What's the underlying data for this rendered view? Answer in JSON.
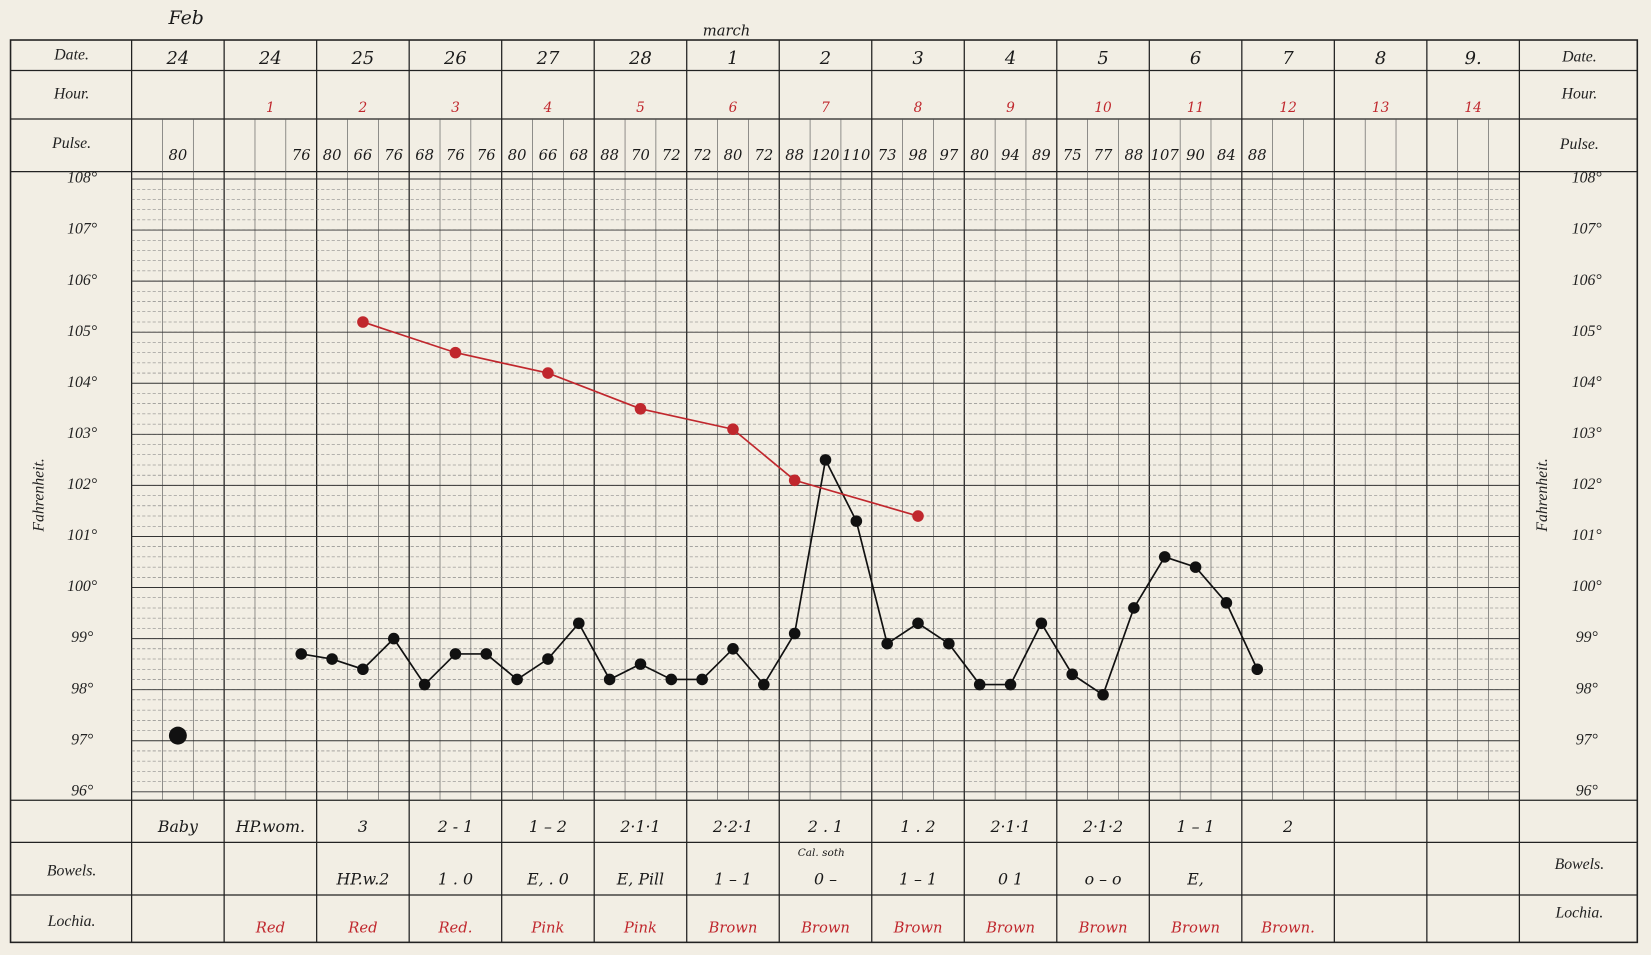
{
  "header": {
    "date_label": "Date.",
    "hour_label": "Hour.",
    "pulse_label": "Pulse.",
    "fahrenheit_label": "Fahrenheit.",
    "bowels_label": "Bowels.",
    "lochia_label": "Lochia.",
    "months": [
      "Feb",
      "march"
    ]
  },
  "dates": [
    "24",
    "24",
    "25",
    "26",
    "27",
    "28",
    "1",
    "2",
    "3",
    "4",
    "5",
    "6",
    "7",
    "8",
    "9."
  ],
  "hours": [
    null,
    1,
    2,
    3,
    4,
    5,
    6,
    7,
    8,
    9,
    10,
    11,
    12,
    13,
    14
  ],
  "notes": [
    "Baby",
    "HP.wom.",
    "3",
    "2 - 1",
    "1 – 2",
    "2·1·1",
    "2·2·1",
    "2 . 1",
    "1 . 2",
    "2·1·1",
    "2·1·2",
    "1 – 1",
    "2",
    null,
    null
  ],
  "bowels": [
    null,
    null,
    "HP.w.2",
    "1 . 0",
    "E, . 0",
    "E, Pill",
    "1 – 1",
    "0 –",
    "1 – 1",
    "0 1",
    "o – o",
    "E,",
    null,
    null,
    null
  ],
  "bowels_note": "Cal. soth",
  "lochia": [
    null,
    "Red",
    "Red",
    "Red.",
    "Pink",
    "Pink",
    "Brown",
    "Brown",
    "Brown",
    "Brown",
    "Brown",
    "Brown",
    "Brown.",
    null,
    null
  ],
  "chart_data": {
    "type": "line",
    "xlim": [
      0,
      45
    ],
    "ylim": [
      96,
      108
    ],
    "grid": true,
    "yticks": [
      {
        "value": 96,
        "label": "96°"
      },
      {
        "value": 97,
        "label": "97°"
      },
      {
        "value": 98,
        "label": "98°"
      },
      {
        "value": 99,
        "label": "99°"
      },
      {
        "value": 100,
        "label": "100°"
      },
      {
        "value": 101,
        "label": "101°"
      },
      {
        "value": 102,
        "label": "102°"
      },
      {
        "value": 103,
        "label": "103°"
      },
      {
        "value": 104,
        "label": "104°"
      },
      {
        "value": 105,
        "label": "105°"
      },
      {
        "value": 106,
        "label": "106°"
      },
      {
        "value": 107,
        "label": "107°"
      },
      {
        "value": 108,
        "label": "108°"
      }
    ],
    "series": [
      {
        "color": "#111111",
        "x": [
          1.5
        ],
        "values": [
          97.1
        ],
        "pulse": [
          80
        ]
      },
      {
        "color": "#111111",
        "x": [
          5.5,
          6.5,
          7.5,
          8.5,
          9.5,
          10.5,
          11.5,
          12.5,
          13.5,
          14.5,
          15.5,
          16.5,
          17.5,
          18.5,
          19.5,
          20.5,
          21.5,
          22.5,
          23.5,
          24.5,
          25.5,
          26.5,
          27.5,
          28.5,
          29.5,
          30.5,
          31.5,
          32.5,
          33.5,
          34.5,
          35.5,
          36.5
        ],
        "values": [
          98.7,
          98.6,
          98.4,
          99.0,
          98.1,
          98.7,
          98.7,
          98.2,
          98.6,
          99.3,
          98.2,
          98.5,
          98.2,
          98.2,
          98.8,
          98.1,
          99.1,
          102.5,
          101.3,
          98.9,
          99.3,
          98.9,
          98.1,
          98.1,
          99.3,
          98.3,
          97.9,
          99.6,
          100.6,
          100.4,
          99.7,
          98.4
        ],
        "pulse": [
          76,
          80,
          66,
          76,
          68,
          76,
          76,
          80,
          66,
          68,
          88,
          70,
          72,
          72,
          80,
          72,
          88,
          120,
          110,
          73,
          98,
          97,
          80,
          94,
          89,
          75,
          77,
          88,
          107,
          90,
          84,
          88
        ]
      },
      {
        "color": "#c0272d",
        "x": [
          7.5,
          10.5,
          13.5,
          16.5,
          19.5,
          21.5,
          25.5
        ],
        "values": [
          105.2,
          104.6,
          104.2,
          103.5,
          103.1,
          102.1,
          101.4
        ]
      }
    ]
  }
}
